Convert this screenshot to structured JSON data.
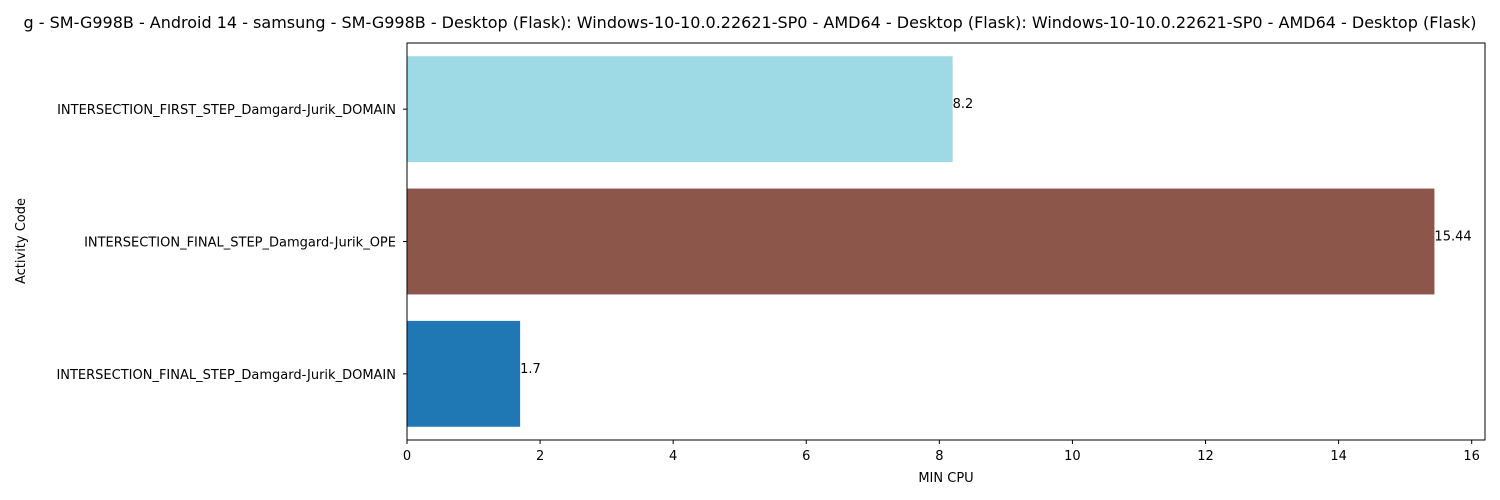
{
  "chart_data": {
    "type": "bar",
    "orientation": "horizontal",
    "title": "g - SM-G998B - Android 14 - samsung - SM-G998B - Desktop (Flask): Windows-10-10.0.22621-SP0 - AMD64 - Desktop (Flask): Windows-10-10.0.22621-SP0 - AMD64 - Desktop (Flask)",
    "xlabel": "MIN CPU",
    "ylabel": "Activity Code",
    "categories": [
      "INTERSECTION_FIRST_STEP_Damgard-Jurik_DOMAIN",
      "INTERSECTION_FINAL_STEP_Damgard-Jurik_OPE",
      "INTERSECTION_FINAL_STEP_Damgard-Jurik_DOMAIN"
    ],
    "values": [
      8.2,
      15.44,
      1.7
    ],
    "data_labels": [
      "8.2",
      "15.44",
      "1.7"
    ],
    "colors": [
      "#9edae5",
      "#8c564b",
      "#1f77b4"
    ],
    "xlim": [
      0,
      16.2
    ],
    "xticks": [
      0,
      2,
      4,
      6,
      8,
      10,
      12,
      14,
      16
    ],
    "xtick_labels": [
      "0",
      "2",
      "4",
      "6",
      "8",
      "10",
      "12",
      "14",
      "16"
    ],
    "grid": false,
    "legend": "none"
  }
}
